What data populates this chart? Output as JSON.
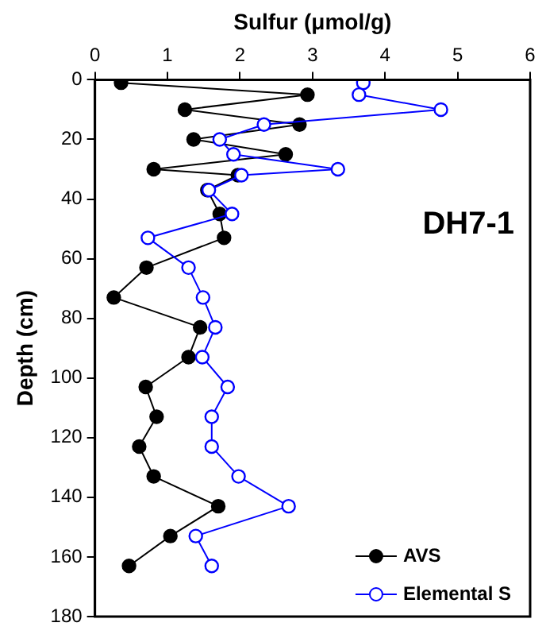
{
  "chart_data": {
    "type": "line",
    "xlabel": "Sulfur (μmol/g)",
    "ylabel": "Depth (cm)",
    "xlim": [
      0,
      6
    ],
    "xticks": [
      0,
      1,
      2,
      3,
      4,
      5,
      6
    ],
    "ylim": [
      180,
      0
    ],
    "yticks": [
      0,
      20,
      40,
      60,
      80,
      100,
      120,
      140,
      160,
      180
    ],
    "grid": false,
    "legend": "bottom right",
    "marker": "circle",
    "annotations": [
      "DH7-1"
    ],
    "series": [
      {
        "name": "AVS",
        "color": "#000000",
        "x": [
          0.36,
          2.93,
          1.24,
          2.82,
          1.36,
          2.63,
          0.81,
          1.97,
          1.55,
          1.72,
          1.78,
          0.71,
          0.26,
          1.45,
          1.29,
          0.7,
          0.85,
          0.61,
          0.81,
          1.7,
          1.04,
          0.47
        ],
        "values": [
          1,
          5,
          10,
          15,
          20,
          25,
          30,
          32,
          37,
          45,
          53,
          63,
          73,
          83,
          93,
          103,
          113,
          123,
          133,
          143,
          153,
          163
        ]
      },
      {
        "name": "Elemental S",
        "color": "#0000ff",
        "x": [
          3.7,
          3.64,
          4.77,
          2.33,
          1.72,
          1.91,
          3.35,
          2.02,
          1.57,
          1.89,
          0.73,
          1.29,
          1.49,
          1.66,
          1.48,
          1.83,
          1.61,
          1.61,
          1.98,
          2.67,
          1.39,
          1.61
        ],
        "values": [
          1,
          5,
          10,
          15,
          20,
          25,
          30,
          32,
          37,
          45,
          53,
          63,
          73,
          83,
          93,
          103,
          113,
          123,
          133,
          143,
          153,
          163
        ]
      }
    ]
  }
}
